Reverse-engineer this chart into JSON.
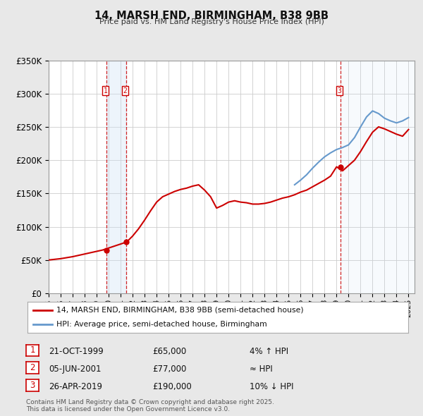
{
  "title": "14, MARSH END, BIRMINGHAM, B38 9BB",
  "subtitle": "Price paid vs. HM Land Registry's House Price Index (HPI)",
  "bg_color": "#e8e8e8",
  "plot_bg_color": "#ffffff",
  "grid_color": "#cccccc",
  "red_line_color": "#cc0000",
  "blue_line_color": "#6699cc",
  "shade_color": "#cce0f5",
  "legend_label_red": "14, MARSH END, BIRMINGHAM, B38 9BB (semi-detached house)",
  "legend_label_blue": "HPI: Average price, semi-detached house, Birmingham",
  "transactions": [
    {
      "num": 1,
      "date": "21-OCT-1999",
      "price": 65000,
      "note": "4% ↑ HPI",
      "year": 1999.8
    },
    {
      "num": 2,
      "date": "05-JUN-2001",
      "price": 77000,
      "note": "≈ HPI",
      "year": 2001.45
    },
    {
      "num": 3,
      "date": "26-APR-2019",
      "price": 190000,
      "note": "10% ↓ HPI",
      "year": 2019.32
    }
  ],
  "footer": [
    "Contains HM Land Registry data © Crown copyright and database right 2025.",
    "This data is licensed under the Open Government Licence v3.0."
  ],
  "xmin": 1995.0,
  "xmax": 2025.5,
  "ymin": 0,
  "ymax": 350000,
  "yticks": [
    0,
    50000,
    100000,
    150000,
    200000,
    250000,
    300000,
    350000
  ],
  "red_x": [
    1995.0,
    1995.5,
    1996.0,
    1996.5,
    1997.0,
    1997.5,
    1998.0,
    1998.5,
    1999.0,
    1999.5,
    2000.0,
    2000.5,
    2001.0,
    2001.5,
    2002.0,
    2002.5,
    2003.0,
    2003.5,
    2004.0,
    2004.5,
    2005.0,
    2005.5,
    2006.0,
    2006.5,
    2007.0,
    2007.5,
    2008.0,
    2008.5,
    2009.0,
    2009.5,
    2010.0,
    2010.5,
    2011.0,
    2011.5,
    2012.0,
    2012.5,
    2013.0,
    2013.5,
    2014.0,
    2014.5,
    2015.0,
    2015.5,
    2016.0,
    2016.5,
    2017.0,
    2017.5,
    2018.0,
    2018.5,
    2019.0,
    2019.5,
    2020.0,
    2020.5,
    2021.0,
    2021.5,
    2022.0,
    2022.5,
    2023.0,
    2023.5,
    2024.0,
    2024.5,
    2025.0
  ],
  "red_y": [
    50000,
    51000,
    52000,
    53500,
    55000,
    57000,
    59000,
    61000,
    63000,
    65000,
    68000,
    71000,
    74000,
    77000,
    86000,
    97000,
    110000,
    124000,
    137000,
    145000,
    149000,
    153000,
    156000,
    158000,
    161000,
    163000,
    155000,
    145000,
    128000,
    132000,
    137000,
    139000,
    137000,
    136000,
    134000,
    134000,
    135000,
    137000,
    140000,
    143000,
    145000,
    148000,
    152000,
    155000,
    160000,
    165000,
    170000,
    176000,
    190000,
    184000,
    192000,
    200000,
    213000,
    228000,
    242000,
    250000,
    247000,
    243000,
    239000,
    236000,
    246000
  ],
  "blue_x": [
    2015.5,
    2016.0,
    2016.5,
    2017.0,
    2017.5,
    2018.0,
    2018.5,
    2019.0,
    2019.5,
    2020.0,
    2020.5,
    2021.0,
    2021.5,
    2022.0,
    2022.5,
    2023.0,
    2023.5,
    2024.0,
    2024.5,
    2025.0
  ],
  "blue_y": [
    163000,
    170000,
    178000,
    188000,
    197000,
    205000,
    211000,
    216000,
    219000,
    223000,
    234000,
    250000,
    265000,
    274000,
    270000,
    263000,
    259000,
    256000,
    259000,
    264000
  ]
}
